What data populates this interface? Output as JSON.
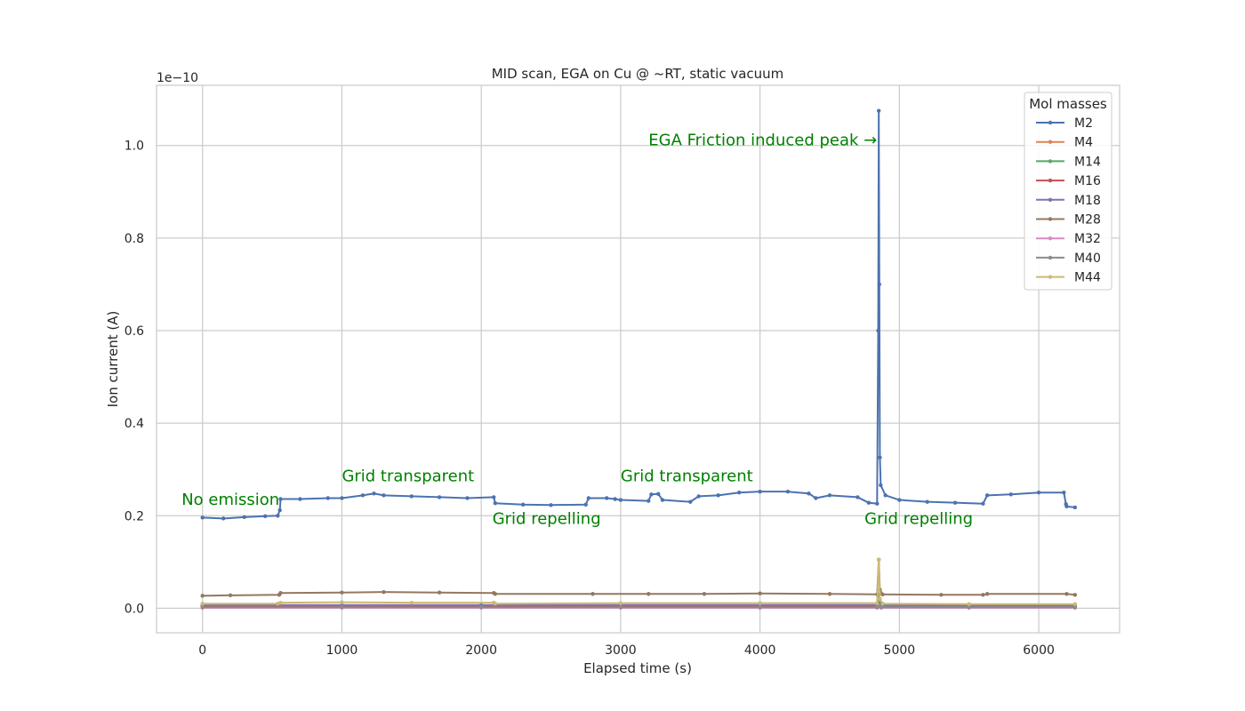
{
  "chart_data": {
    "type": "line",
    "title": "MID scan, EGA on Cu @ ~RT, static vacuum",
    "xlabel": "Elapsed time (s)",
    "ylabel": "Ion current (A)",
    "y_offset_text": "1e−10",
    "xlim": [
      -330,
      6580
    ],
    "ylim": [
      -0.053,
      1.13
    ],
    "x_ticks": [
      0,
      1000,
      2000,
      3000,
      4000,
      5000,
      6000
    ],
    "x_tick_labels": [
      "0",
      "1000",
      "2000",
      "3000",
      "4000",
      "5000",
      "6000"
    ],
    "y_ticks": [
      0.0,
      0.2,
      0.4,
      0.6,
      0.8,
      1.0
    ],
    "y_tick_labels": [
      "0.0",
      "0.2",
      "0.4",
      "0.6",
      "0.8",
      "1.0"
    ],
    "y_scale_factor": "1e-10",
    "grid": true,
    "legend": {
      "title": "Mol masses",
      "placement": "top-right"
    },
    "series": [
      {
        "name": "M2",
        "color": "#4c72b0",
        "points": [
          [
            0,
            0.196
          ],
          [
            150,
            0.194
          ],
          [
            300,
            0.197
          ],
          [
            450,
            0.199
          ],
          [
            540,
            0.2
          ],
          [
            555,
            0.212
          ],
          [
            560,
            0.236
          ],
          [
            700,
            0.236
          ],
          [
            900,
            0.238
          ],
          [
            1000,
            0.238
          ],
          [
            1150,
            0.244
          ],
          [
            1230,
            0.248
          ],
          [
            1300,
            0.244
          ],
          [
            1500,
            0.242
          ],
          [
            1700,
            0.24
          ],
          [
            1900,
            0.238
          ],
          [
            2090,
            0.24
          ],
          [
            2100,
            0.227
          ],
          [
            2300,
            0.224
          ],
          [
            2500,
            0.223
          ],
          [
            2750,
            0.224
          ],
          [
            2770,
            0.238
          ],
          [
            2900,
            0.238
          ],
          [
            2960,
            0.236
          ],
          [
            3000,
            0.234
          ],
          [
            3200,
            0.232
          ],
          [
            3220,
            0.246
          ],
          [
            3270,
            0.247
          ],
          [
            3300,
            0.234
          ],
          [
            3500,
            0.23
          ],
          [
            3560,
            0.242
          ],
          [
            3700,
            0.244
          ],
          [
            3850,
            0.25
          ],
          [
            4000,
            0.252
          ],
          [
            4200,
            0.252
          ],
          [
            4350,
            0.248
          ],
          [
            4400,
            0.238
          ],
          [
            4500,
            0.244
          ],
          [
            4700,
            0.24
          ],
          [
            4780,
            0.228
          ],
          [
            4840,
            0.226
          ],
          [
            4848,
            0.6
          ],
          [
            4852,
            1.075
          ],
          [
            4856,
            0.7
          ],
          [
            4860,
            0.326
          ],
          [
            4866,
            0.266
          ],
          [
            4900,
            0.244
          ],
          [
            5000,
            0.234
          ],
          [
            5200,
            0.23
          ],
          [
            5400,
            0.228
          ],
          [
            5600,
            0.226
          ],
          [
            5630,
            0.244
          ],
          [
            5800,
            0.246
          ],
          [
            6000,
            0.25
          ],
          [
            6180,
            0.25
          ],
          [
            6195,
            0.225
          ],
          [
            6200,
            0.22
          ],
          [
            6260,
            0.218
          ]
        ]
      },
      {
        "name": "M4",
        "color": "#dd8452",
        "points": [
          [
            0,
            0.004
          ],
          [
            1000,
            0.004
          ],
          [
            2000,
            0.004
          ],
          [
            3000,
            0.004
          ],
          [
            4000,
            0.004
          ],
          [
            4840,
            0.004
          ],
          [
            4852,
            0.012
          ],
          [
            4870,
            0.004
          ],
          [
            5500,
            0.004
          ],
          [
            6260,
            0.004
          ]
        ]
      },
      {
        "name": "M14",
        "color": "#55a868",
        "points": [
          [
            0,
            0.006
          ],
          [
            1000,
            0.006
          ],
          [
            2000,
            0.006
          ],
          [
            3000,
            0.006
          ],
          [
            4000,
            0.006
          ],
          [
            4840,
            0.006
          ],
          [
            4852,
            0.03
          ],
          [
            4870,
            0.006
          ],
          [
            5500,
            0.006
          ],
          [
            6260,
            0.006
          ]
        ]
      },
      {
        "name": "M16",
        "color": "#c44e52",
        "points": [
          [
            0,
            0.003
          ],
          [
            1000,
            0.003
          ],
          [
            2000,
            0.003
          ],
          [
            3000,
            0.003
          ],
          [
            4000,
            0.003
          ],
          [
            4840,
            0.003
          ],
          [
            4852,
            0.008
          ],
          [
            4870,
            0.002
          ],
          [
            5500,
            0.002
          ],
          [
            6260,
            0.002
          ]
        ]
      },
      {
        "name": "M18",
        "color": "#8172b3",
        "points": [
          [
            0,
            0.007
          ],
          [
            1000,
            0.007
          ],
          [
            2000,
            0.007
          ],
          [
            3000,
            0.007
          ],
          [
            4000,
            0.007
          ],
          [
            4840,
            0.007
          ],
          [
            4852,
            0.01
          ],
          [
            4870,
            0.006
          ],
          [
            5500,
            0.006
          ],
          [
            6260,
            0.006
          ]
        ]
      },
      {
        "name": "M28",
        "color": "#937860",
        "points": [
          [
            0,
            0.027
          ],
          [
            200,
            0.028
          ],
          [
            550,
            0.029
          ],
          [
            560,
            0.033
          ],
          [
            1000,
            0.034
          ],
          [
            1300,
            0.035
          ],
          [
            1700,
            0.034
          ],
          [
            2090,
            0.033
          ],
          [
            2100,
            0.031
          ],
          [
            2800,
            0.031
          ],
          [
            3200,
            0.031
          ],
          [
            3600,
            0.031
          ],
          [
            4000,
            0.032
          ],
          [
            4500,
            0.031
          ],
          [
            4840,
            0.03
          ],
          [
            4852,
            0.105
          ],
          [
            4860,
            0.04
          ],
          [
            4880,
            0.03
          ],
          [
            5300,
            0.029
          ],
          [
            5600,
            0.029
          ],
          [
            5630,
            0.031
          ],
          [
            6200,
            0.031
          ],
          [
            6260,
            0.029
          ]
        ]
      },
      {
        "name": "M32",
        "color": "#da8bc3",
        "points": [
          [
            0,
            0.001
          ],
          [
            1000,
            0.001
          ],
          [
            2000,
            0.001
          ],
          [
            3000,
            0.001
          ],
          [
            4000,
            0.001
          ],
          [
            4840,
            0.001
          ],
          [
            4852,
            0.005
          ],
          [
            4870,
            0.001
          ],
          [
            5500,
            0.001
          ],
          [
            6260,
            0.001
          ]
        ]
      },
      {
        "name": "M40",
        "color": "#8c8c8c",
        "points": [
          [
            0,
            0.002
          ],
          [
            1000,
            0.002
          ],
          [
            2000,
            0.002
          ],
          [
            3000,
            0.002
          ],
          [
            4000,
            0.002
          ],
          [
            4840,
            0.002
          ],
          [
            4852,
            0.004
          ],
          [
            4870,
            0.002
          ],
          [
            5500,
            0.002
          ],
          [
            6260,
            0.002
          ]
        ]
      },
      {
        "name": "M44",
        "color": "#ccb974",
        "points": [
          [
            0,
            0.01
          ],
          [
            540,
            0.01
          ],
          [
            560,
            0.012
          ],
          [
            1000,
            0.013
          ],
          [
            1500,
            0.012
          ],
          [
            2090,
            0.012
          ],
          [
            2100,
            0.01
          ],
          [
            3000,
            0.011
          ],
          [
            4000,
            0.011
          ],
          [
            4840,
            0.011
          ],
          [
            4852,
            0.105
          ],
          [
            4860,
            0.02
          ],
          [
            4880,
            0.01
          ],
          [
            5500,
            0.009
          ],
          [
            6260,
            0.009
          ]
        ]
      }
    ],
    "annotations": [
      {
        "text": "No emission",
        "x": -150,
        "y": 0.224,
        "anchor": "start"
      },
      {
        "text": "Grid transparent",
        "x": 1000,
        "y": 0.274,
        "anchor": "start"
      },
      {
        "text": "Grid repelling",
        "x": 2080,
        "y": 0.182,
        "anchor": "start"
      },
      {
        "text": "Grid transparent",
        "x": 3000,
        "y": 0.274,
        "anchor": "start"
      },
      {
        "text": "EGA Friction induced peak →",
        "x": 3200,
        "y": 1.0,
        "anchor": "start"
      },
      {
        "text": "Grid repelling",
        "x": 4750,
        "y": 0.182,
        "anchor": "start"
      }
    ]
  }
}
